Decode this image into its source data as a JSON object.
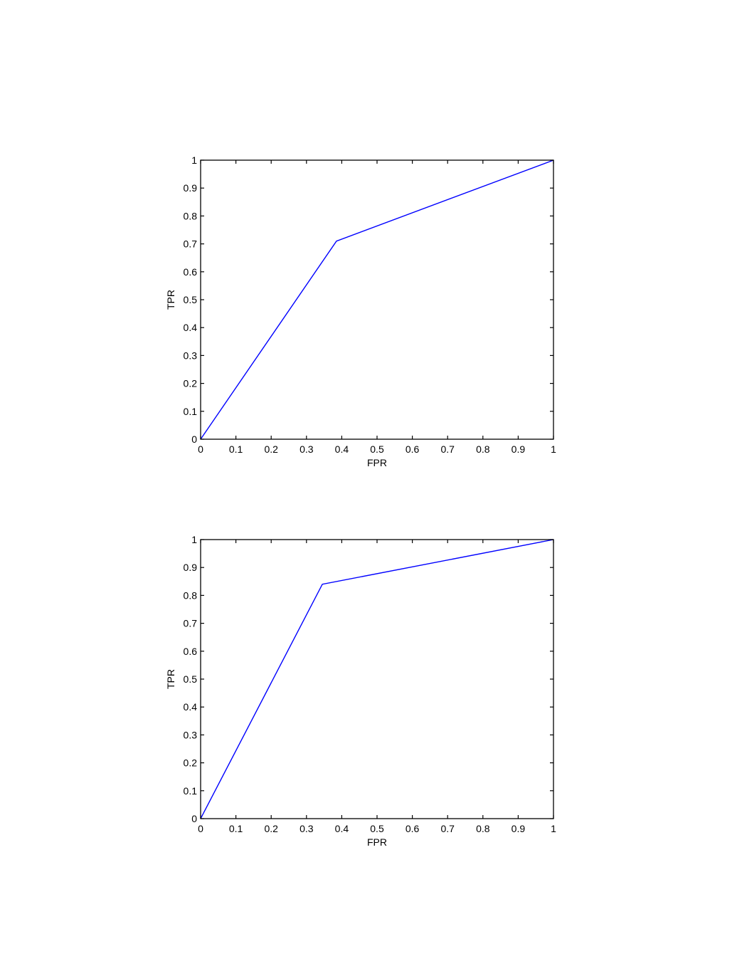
{
  "chart_data": [
    {
      "type": "line",
      "xlabel": "FPR",
      "ylabel": "TPR",
      "xlim": [
        0,
        1
      ],
      "ylim": [
        0,
        1
      ],
      "xticks": [
        0,
        0.1,
        0.2,
        0.3,
        0.4,
        0.5,
        0.6,
        0.7,
        0.8,
        0.9,
        1
      ],
      "xtick_labels": [
        "0",
        "0.1",
        "0.2",
        "0.3",
        "0.4",
        "0.5",
        "0.6",
        "0.7",
        "0.8",
        "0.9",
        "1"
      ],
      "yticks": [
        0,
        0.1,
        0.2,
        0.3,
        0.4,
        0.5,
        0.6,
        0.7,
        0.8,
        0.9,
        1
      ],
      "ytick_labels": [
        "0",
        "0.1",
        "0.2",
        "0.3",
        "0.4",
        "0.5",
        "0.6",
        "0.7",
        "0.8",
        "0.9",
        "1"
      ],
      "grid": false,
      "series": [
        {
          "color": "#0000ff",
          "x": [
            0,
            0.385,
            1
          ],
          "y": [
            0,
            0.71,
            1
          ]
        }
      ]
    },
    {
      "type": "line",
      "xlabel": "FPR",
      "ylabel": "TPR",
      "xlim": [
        0,
        1
      ],
      "ylim": [
        0,
        1
      ],
      "xticks": [
        0,
        0.1,
        0.2,
        0.3,
        0.4,
        0.5,
        0.6,
        0.7,
        0.8,
        0.9,
        1
      ],
      "xtick_labels": [
        "0",
        "0.1",
        "0.2",
        "0.3",
        "0.4",
        "0.5",
        "0.6",
        "0.7",
        "0.8",
        "0.9",
        "1"
      ],
      "yticks": [
        0,
        0.1,
        0.2,
        0.3,
        0.4,
        0.5,
        0.6,
        0.7,
        0.8,
        0.9,
        1
      ],
      "ytick_labels": [
        "0",
        "0.1",
        "0.2",
        "0.3",
        "0.4",
        "0.5",
        "0.6",
        "0.7",
        "0.8",
        "0.9",
        "1"
      ],
      "grid": false,
      "series": [
        {
          "color": "#0000ff",
          "x": [
            0,
            0.345,
            1
          ],
          "y": [
            0,
            0.84,
            1
          ]
        }
      ]
    }
  ]
}
